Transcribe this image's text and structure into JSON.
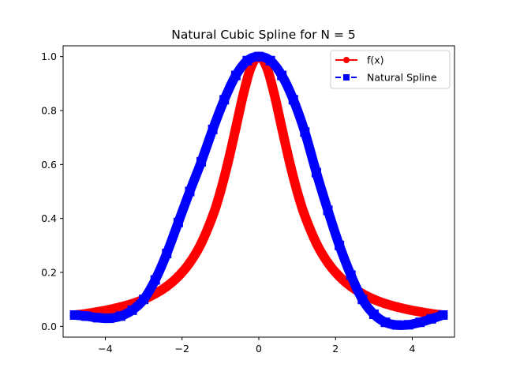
{
  "chart_data": {
    "type": "line",
    "title": "Natural Cubic Spline for N = 5",
    "xlabel": "",
    "ylabel": "",
    "xlim": [
      -5.1,
      5.1
    ],
    "ylim": [
      -0.04,
      1.04
    ],
    "x_ticks": [
      -4,
      -2,
      0,
      2,
      4
    ],
    "x_tick_labels": [
      "−4",
      "−2",
      "0",
      "2",
      "4"
    ],
    "y_ticks": [
      0.0,
      0.2,
      0.4,
      0.6,
      0.8,
      1.0
    ],
    "y_tick_labels": [
      "0.0",
      "0.2",
      "0.4",
      "0.6",
      "0.8",
      "1.0"
    ],
    "grid": false,
    "legend_position": "top-right",
    "series": [
      {
        "name": "f(x)",
        "color": "#ff0000",
        "marker": "circle",
        "line_style": "solid",
        "x": [
          -4.8,
          -4.5,
          -4.2,
          -3.9,
          -3.6,
          -3.3,
          -3.0,
          -2.7,
          -2.4,
          -2.1,
          -1.8,
          -1.5,
          -1.2,
          -1.0,
          -0.8,
          -0.6,
          -0.4,
          -0.2,
          0.0,
          0.2,
          0.4,
          0.6,
          0.8,
          1.0,
          1.2,
          1.5,
          1.8,
          2.1,
          2.4,
          2.7,
          3.0,
          3.3,
          3.6,
          3.9,
          4.2,
          4.5,
          4.8
        ],
        "y": [
          0.042,
          0.047,
          0.054,
          0.062,
          0.072,
          0.084,
          0.1,
          0.121,
          0.148,
          0.185,
          0.236,
          0.308,
          0.41,
          0.5,
          0.61,
          0.735,
          0.862,
          0.962,
          1.0,
          0.962,
          0.862,
          0.735,
          0.61,
          0.5,
          0.41,
          0.308,
          0.236,
          0.185,
          0.148,
          0.121,
          0.1,
          0.084,
          0.072,
          0.062,
          0.054,
          0.047,
          0.042
        ]
      },
      {
        "name": "Natural Spline",
        "color": "#0000ff",
        "marker": "square",
        "line_style": "dashed",
        "x": [
          -4.8,
          -4.5,
          -4.2,
          -3.9,
          -3.6,
          -3.3,
          -3.0,
          -2.7,
          -2.4,
          -2.1,
          -1.8,
          -1.5,
          -1.2,
          -0.9,
          -0.6,
          -0.3,
          0.0,
          0.3,
          0.6,
          0.9,
          1.2,
          1.5,
          1.8,
          2.1,
          2.4,
          2.7,
          3.0,
          3.3,
          3.6,
          3.9,
          4.2,
          4.5,
          4.8
        ],
        "y": [
          0.042,
          0.038,
          0.032,
          0.03,
          0.038,
          0.06,
          0.1,
          0.172,
          0.27,
          0.385,
          0.5,
          0.61,
          0.73,
          0.84,
          0.93,
          0.985,
          1.0,
          0.985,
          0.93,
          0.84,
          0.72,
          0.57,
          0.43,
          0.3,
          0.19,
          0.1,
          0.045,
          0.015,
          0.005,
          0.006,
          0.015,
          0.028,
          0.042
        ]
      }
    ]
  }
}
